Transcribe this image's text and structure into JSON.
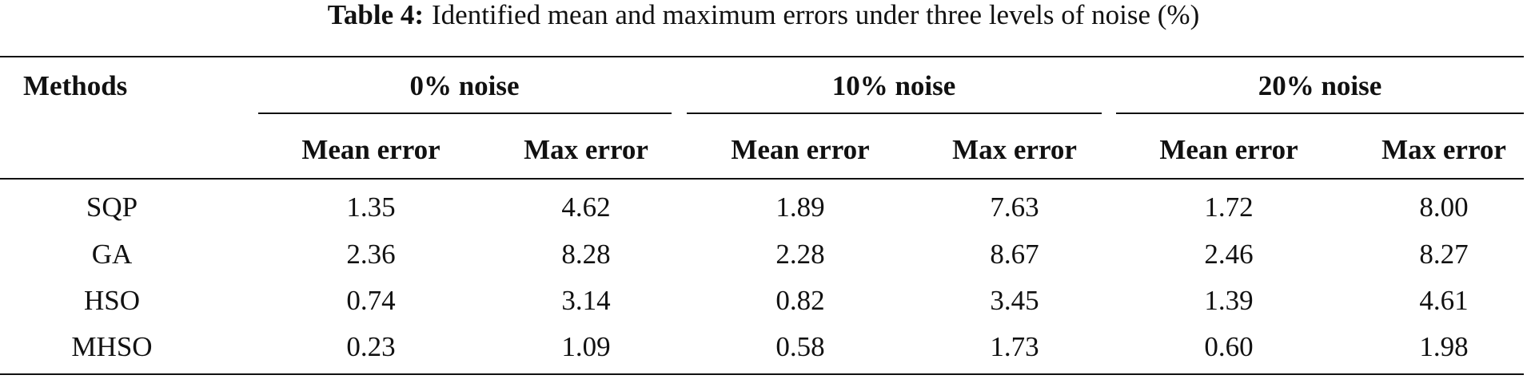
{
  "caption": {
    "label": "Table 4:",
    "text": "Identified mean and maximum errors under three levels of noise (%)"
  },
  "table": {
    "row_header": "Methods",
    "groups": [
      "0% noise",
      "10% noise",
      "20% noise"
    ],
    "subheaders": [
      "Mean error",
      "Max error",
      "Mean error",
      "Max error",
      "Mean error",
      "Max error"
    ],
    "rows": [
      [
        "SQP",
        "1.35",
        "4.62",
        "1.89",
        "7.63",
        "1.72",
        "8.00"
      ],
      [
        "GA",
        "2.36",
        "8.28",
        "2.28",
        "8.67",
        "2.46",
        "8.27"
      ],
      [
        "HSO",
        "0.74",
        "3.14",
        "0.82",
        "3.45",
        "1.39",
        "4.61"
      ],
      [
        "MHSO",
        "0.23",
        "1.09",
        "0.58",
        "1.73",
        "0.60",
        "1.98"
      ]
    ]
  }
}
